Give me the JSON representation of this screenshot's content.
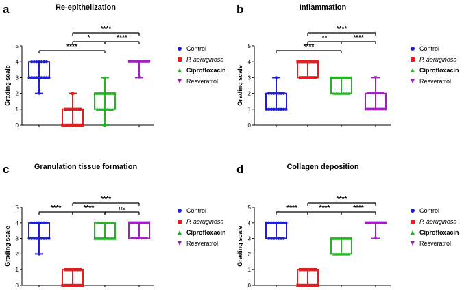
{
  "chart_data": [
    {
      "type": "box",
      "letter": "a",
      "title": "Re-epithelization",
      "ylabel": "Grading scale",
      "ylim": [
        0,
        5
      ],
      "yticks": [
        0,
        1,
        2,
        3,
        4,
        5
      ],
      "groups": [
        {
          "name": "Control",
          "min": 2,
          "q1": 3,
          "median": 3,
          "q3": 4,
          "max": 4,
          "color": "#1f1fd1",
          "marker": "circle"
        },
        {
          "name": "P. aeruginosa",
          "min": 0,
          "q1": 0,
          "median": 0,
          "q3": 1,
          "max": 2,
          "color": "#e02020",
          "marker": "square"
        },
        {
          "name": "Ciprofloxacin",
          "min": 0,
          "q1": 1,
          "median": 2,
          "q3": 2,
          "max": 3,
          "color": "#22b522",
          "marker": "triangle-up"
        },
        {
          "name": "Resveratrol",
          "min": 3,
          "q1": 4,
          "median": 4,
          "q3": 4,
          "max": 4,
          "color": "#a020c0",
          "marker": "triangle-down"
        }
      ],
      "significance": [
        {
          "from": 0,
          "to": 2,
          "label": "****",
          "level": 0
        },
        {
          "from": 1,
          "to": 2,
          "label": "*",
          "level": 1
        },
        {
          "from": 2,
          "to": 3,
          "label": "****",
          "level": 1
        },
        {
          "from": 1,
          "to": 3,
          "label": "****",
          "level": 2
        }
      ]
    },
    {
      "type": "box",
      "letter": "b",
      "title": "Inflammation",
      "ylabel": "Grading scale",
      "ylim": [
        0,
        5
      ],
      "yticks": [
        0,
        1,
        2,
        3,
        4,
        5
      ],
      "groups": [
        {
          "name": "Control",
          "min": 1,
          "q1": 1,
          "median": 1,
          "q3": 2,
          "max": 3,
          "color": "#1f1fd1",
          "marker": "circle"
        },
        {
          "name": "P. aeruginosa",
          "min": 3,
          "q1": 3,
          "median": 4,
          "q3": 4,
          "max": 4,
          "color": "#e02020",
          "marker": "square"
        },
        {
          "name": "Ciprofloxacin",
          "min": 2,
          "q1": 2,
          "median": 3,
          "q3": 3,
          "max": 3,
          "color": "#22b522",
          "marker": "triangle-up"
        },
        {
          "name": "Resveratrol",
          "min": 1,
          "q1": 1,
          "median": 1,
          "q3": 2,
          "max": 3,
          "color": "#a020c0",
          "marker": "triangle-down"
        }
      ],
      "significance": [
        {
          "from": 0,
          "to": 2,
          "label": "****",
          "level": 0
        },
        {
          "from": 1,
          "to": 2,
          "label": "**",
          "level": 1
        },
        {
          "from": 2,
          "to": 3,
          "label": "****",
          "level": 1
        },
        {
          "from": 1,
          "to": 3,
          "label": "****",
          "level": 2
        }
      ]
    },
    {
      "type": "box",
      "letter": "c",
      "title": "Granulation tissue formation",
      "ylabel": "Grading scale",
      "ylim": [
        0,
        5
      ],
      "yticks": [
        0,
        1,
        2,
        3,
        4,
        5
      ],
      "groups": [
        {
          "name": "Control",
          "min": 2,
          "q1": 3,
          "median": 3,
          "q3": 4,
          "max": 4,
          "color": "#1f1fd1",
          "marker": "circle"
        },
        {
          "name": "P. aeruginosa",
          "min": 0,
          "q1": 0,
          "median": 0,
          "q3": 1,
          "max": 1,
          "color": "#e02020",
          "marker": "square"
        },
        {
          "name": "Ciprofloxacin",
          "min": 3,
          "q1": 3,
          "median": 3,
          "q3": 4,
          "max": 4,
          "color": "#22b522",
          "marker": "triangle-up"
        },
        {
          "name": "Resveratrol",
          "min": 3,
          "q1": 3,
          "median": 4,
          "q3": 4,
          "max": 4,
          "color": "#a020c0",
          "marker": "triangle-down"
        }
      ],
      "significance": [
        {
          "from": 0,
          "to": 1,
          "label": "****",
          "level": 0
        },
        {
          "from": 1,
          "to": 2,
          "label": "****",
          "level": 0
        },
        {
          "from": 2,
          "to": 3,
          "label": "ns",
          "level": 0
        },
        {
          "from": 1,
          "to": 3,
          "label": "****",
          "level": 1
        }
      ]
    },
    {
      "type": "box",
      "letter": "d",
      "title": "Collagen deposition",
      "ylabel": "Grading scale",
      "ylim": [
        0,
        5
      ],
      "yticks": [
        0,
        1,
        2,
        3,
        4,
        5
      ],
      "groups": [
        {
          "name": "Control",
          "min": 3,
          "q1": 3,
          "median": 4,
          "q3": 4,
          "max": 4,
          "color": "#1f1fd1",
          "marker": "circle"
        },
        {
          "name": "P. aeruginosa",
          "min": 0,
          "q1": 0,
          "median": 0,
          "q3": 1,
          "max": 1,
          "color": "#e02020",
          "marker": "square"
        },
        {
          "name": "Ciprofloxacin",
          "min": 2,
          "q1": 2,
          "median": 3,
          "q3": 3,
          "max": 3,
          "color": "#22b522",
          "marker": "triangle-up"
        },
        {
          "name": "Resveratrol",
          "min": 3,
          "q1": 4,
          "median": 4,
          "q3": 4,
          "max": 4,
          "color": "#a020c0",
          "marker": "triangle-down"
        }
      ],
      "significance": [
        {
          "from": 0,
          "to": 1,
          "label": "****",
          "level": 0
        },
        {
          "from": 1,
          "to": 2,
          "label": "****",
          "level": 0
        },
        {
          "from": 2,
          "to": 3,
          "label": "****",
          "level": 0
        },
        {
          "from": 1,
          "to": 3,
          "label": "****",
          "level": 1
        }
      ]
    }
  ],
  "legend": [
    {
      "label": "Control",
      "style": "normal",
      "color": "#1f1fd1",
      "marker": "circle"
    },
    {
      "label": "P. aeruginosa",
      "style": "italic",
      "color": "#e02020",
      "marker": "square"
    },
    {
      "label": "Ciprofloxacin",
      "style": "bold",
      "color": "#22b522",
      "marker": "triangle-up"
    },
    {
      "label": "Resveratrol",
      "style": "normal",
      "color": "#a020c0",
      "marker": "triangle-down"
    }
  ]
}
